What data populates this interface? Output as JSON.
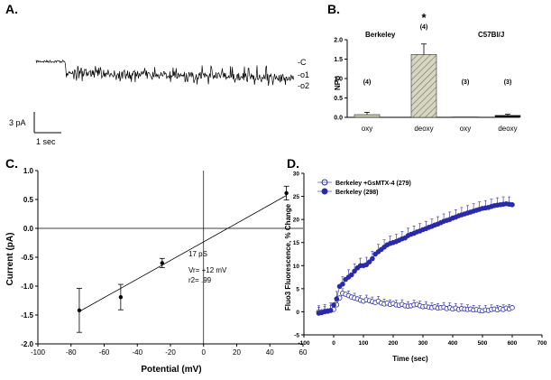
{
  "panels": {
    "a": {
      "letter": "A.",
      "trace_labels": [
        "-C",
        "-o1",
        "-o2"
      ],
      "scale_y": "3 pA",
      "scale_x": "1 sec"
    },
    "b": {
      "letter": "B."
    },
    "c": {
      "letter": "C."
    },
    "d": {
      "letter": "D."
    }
  },
  "chart_data": [
    {
      "panel": "A",
      "type": "line",
      "title": "",
      "description_of_trace": "single-channel current recording with closed level C and open levels o1, o2",
      "levels": [
        "-C",
        "-o1",
        "-o2"
      ],
      "scale_bar": {
        "current": "3 pA",
        "time": "1 sec"
      }
    },
    {
      "panel": "B",
      "type": "bar",
      "ylabel": "NPo",
      "ylim": [
        0,
        2.0
      ],
      "yticks": [
        "0.0",
        "0.5",
        "1.0",
        "1.5",
        "2.0"
      ],
      "groups": [
        "Berkeley",
        "C57Bl/J"
      ],
      "categories": [
        "oxy",
        "deoxy",
        "oxy",
        "deoxy"
      ],
      "values": [
        0.07,
        1.62,
        0.0,
        0.05
      ],
      "errors": [
        0.06,
        0.27,
        0.0,
        0.03
      ],
      "n_labels": [
        "(4)",
        "(4)",
        "(3)",
        "(3)"
      ],
      "significance": "*",
      "colors": [
        "#c8c8b0",
        "#c8c8b0",
        "#c8c8b0",
        "#000000"
      ]
    },
    {
      "panel": "C",
      "type": "scatter",
      "xlabel": "Potential (mV)",
      "ylabel": "Current (pA)",
      "xlim": [
        -100,
        60
      ],
      "ylim": [
        -2.0,
        1.0
      ],
      "xticks": [
        "-100",
        "-80",
        "-60",
        "-40",
        "-20",
        "0",
        "20",
        "40",
        "60"
      ],
      "yticks": [
        "1.0",
        "0.5",
        "0.0",
        "-0.5",
        "-1.0",
        "-1.5",
        "-2.0"
      ],
      "points": [
        {
          "x": -75,
          "y": -1.42,
          "err": 0.38
        },
        {
          "x": -50,
          "y": -1.19,
          "err": 0.22
        },
        {
          "x": -25,
          "y": -0.6,
          "err": 0.08
        },
        {
          "x": 50,
          "y": 0.61,
          "err": 0.12
        }
      ],
      "fit": {
        "x": [
          -75,
          50
        ],
        "y": [
          -1.44,
          0.57
        ]
      },
      "annotations": [
        "17 pS",
        "Vr= +12 mV",
        "r2= .99"
      ]
    },
    {
      "panel": "D",
      "type": "scatter",
      "xlabel": "Time (sec)",
      "ylabel": "Fluo3 Fluorescence, % Change",
      "xlim": [
        -100,
        700
      ],
      "ylim": [
        -5,
        30
      ],
      "xticks": [
        "-100",
        "0",
        "100",
        "200",
        "300",
        "400",
        "500",
        "600",
        "700"
      ],
      "yticks": [
        "30",
        "25",
        "20",
        "15",
        "10",
        "5",
        "0",
        "-5"
      ],
      "series": [
        {
          "name": "Berkeley +GsMTX-4 (279)",
          "marker": "open",
          "color": "#2a2aa8",
          "x": [
            -50,
            -40,
            -30,
            -20,
            -10,
            0,
            10,
            20,
            30,
            40,
            50,
            60,
            70,
            80,
            90,
            100,
            110,
            120,
            130,
            140,
            150,
            160,
            170,
            180,
            190,
            200,
            210,
            220,
            230,
            240,
            250,
            260,
            270,
            280,
            290,
            300,
            310,
            320,
            330,
            340,
            350,
            360,
            370,
            380,
            390,
            400,
            410,
            420,
            430,
            440,
            450,
            460,
            470,
            480,
            490,
            500,
            510,
            520,
            530,
            540,
            550,
            560,
            570,
            580,
            590,
            600
          ],
          "y": [
            0,
            0,
            0.1,
            0.2,
            0.3,
            0.5,
            1.5,
            3,
            4,
            3.8,
            3.5,
            3.2,
            3,
            2.8,
            2.5,
            2.3,
            2.6,
            2.4,
            2.2,
            2.0,
            2.3,
            1.9,
            1.7,
            1.9,
            1.6,
            1.8,
            1.5,
            1.4,
            1.6,
            1.3,
            1.2,
            1.3,
            1.5,
            1.6,
            1.3,
            1.1,
            1.2,
            1.0,
            0.9,
            1.1,
            0.8,
            0.9,
            1.0,
            0.7,
            0.9,
            0.6,
            0.8,
            0.5,
            0.7,
            0.6,
            0.5,
            0.6,
            0.4,
            0.5,
            0.3,
            0.2,
            0.4,
            0.3,
            0.5,
            0.6,
            0.4,
            0.7,
            0.5,
            0.8,
            0.6,
            0.9
          ],
          "err": 1.0
        },
        {
          "name": "Berkeley (298)",
          "marker": "filled",
          "color": "#2a2aa8",
          "x": [
            -50,
            -40,
            -30,
            -20,
            -10,
            0,
            10,
            20,
            30,
            40,
            50,
            60,
            70,
            80,
            90,
            100,
            110,
            120,
            130,
            140,
            150,
            160,
            170,
            180,
            190,
            200,
            210,
            220,
            230,
            240,
            250,
            260,
            270,
            280,
            290,
            300,
            310,
            320,
            330,
            340,
            350,
            360,
            370,
            380,
            390,
            400,
            410,
            420,
            430,
            440,
            450,
            460,
            470,
            480,
            490,
            500,
            510,
            520,
            530,
            540,
            550,
            560,
            570,
            580,
            590,
            600
          ],
          "y": [
            -0.3,
            -0.2,
            0,
            0.1,
            0.3,
            1.5,
            2.8,
            5.5,
            6,
            7,
            7.5,
            8,
            8.8,
            9.5,
            10,
            10,
            10.2,
            10.8,
            11.5,
            12.5,
            13,
            13.5,
            14,
            14.5,
            14.8,
            15,
            15.2,
            15.5,
            15.8,
            16,
            16.5,
            16.8,
            17,
            17.3,
            17.5,
            17.8,
            18,
            18.3,
            18.5,
            18.8,
            19,
            19.3,
            19.6,
            19.8,
            20,
            20.3,
            20.5,
            20.8,
            21,
            21.2,
            21.4,
            21.6,
            21.8,
            22,
            22.2,
            22.4,
            22.5,
            22.6,
            22.8,
            23,
            23.1,
            23.2,
            23.3,
            23.4,
            23.3,
            23.2
          ],
          "err": 1.6
        }
      ]
    }
  ]
}
